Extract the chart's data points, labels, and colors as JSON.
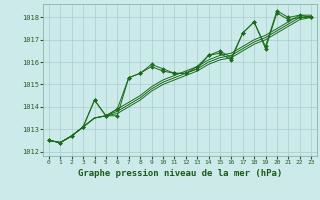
{
  "xlabel": "Graphe pression niveau de la mer (hPa)",
  "bg_color": "#cceaea",
  "grid_color": "#aacccc",
  "line_color": "#1a6b1a",
  "ylim": [
    1011.8,
    1018.6
  ],
  "xlim": [
    -0.5,
    23.5
  ],
  "yticks": [
    1012,
    1013,
    1014,
    1015,
    1016,
    1017,
    1018
  ],
  "xticks": [
    0,
    1,
    2,
    3,
    4,
    5,
    6,
    7,
    8,
    9,
    10,
    11,
    12,
    13,
    14,
    15,
    16,
    17,
    18,
    19,
    20,
    21,
    22,
    23
  ],
  "series": [
    [
      1012.5,
      1012.4,
      1012.7,
      1013.1,
      1014.3,
      1013.6,
      1013.6,
      1015.3,
      1015.5,
      1015.8,
      1015.6,
      1015.5,
      1015.5,
      1015.7,
      1016.3,
      1016.4,
      1016.1,
      1017.3,
      1017.8,
      1016.6,
      1018.2,
      1017.9,
      1018.0,
      1018.0
    ],
    [
      1012.5,
      1012.4,
      1012.7,
      1013.1,
      1013.5,
      1013.6,
      1013.7,
      1014.0,
      1014.3,
      1014.7,
      1015.0,
      1015.2,
      1015.4,
      1015.6,
      1015.9,
      1016.1,
      1016.2,
      1016.5,
      1016.8,
      1017.0,
      1017.3,
      1017.6,
      1017.9,
      1018.0
    ],
    [
      1012.5,
      1012.4,
      1012.7,
      1013.1,
      1013.5,
      1013.6,
      1013.8,
      1014.1,
      1014.4,
      1014.8,
      1015.1,
      1015.3,
      1015.5,
      1015.7,
      1016.0,
      1016.2,
      1016.3,
      1016.6,
      1016.9,
      1017.1,
      1017.4,
      1017.7,
      1018.0,
      1018.05
    ],
    [
      1012.5,
      1012.4,
      1012.7,
      1013.1,
      1013.5,
      1013.6,
      1013.9,
      1014.2,
      1014.5,
      1014.9,
      1015.2,
      1015.4,
      1015.6,
      1015.8,
      1016.1,
      1016.3,
      1016.4,
      1016.7,
      1017.0,
      1017.2,
      1017.5,
      1017.8,
      1018.1,
      1018.1
    ],
    [
      1012.5,
      1012.4,
      1012.7,
      1013.1,
      1014.3,
      1013.6,
      1013.9,
      1015.3,
      1015.5,
      1015.9,
      1015.7,
      1015.5,
      1015.5,
      1015.8,
      1016.3,
      1016.5,
      1016.2,
      1017.3,
      1017.8,
      1016.7,
      1018.3,
      1018.0,
      1018.1,
      1018.0
    ]
  ],
  "marker_series": [
    0,
    4
  ],
  "marker": "D",
  "marker_size": 2.0
}
